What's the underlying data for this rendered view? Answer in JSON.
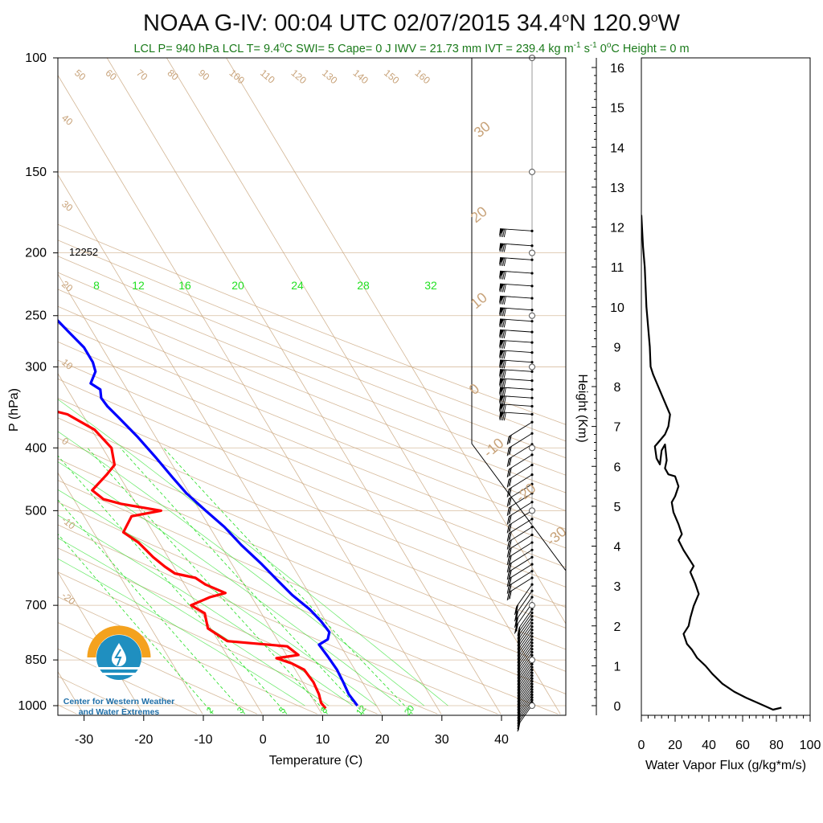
{
  "title": "NOAA G-IV: 00:04 UTC 02/07/2015  34.4",
  "title_lat_sup": "o",
  "title_mid": "N 120.9",
  "title_lon_sup": "o",
  "title_end": "W",
  "subtitle": {
    "part1": "LCL P= 940 hPa  LCL T= 9.4",
    "deg1": "o",
    "part2": "C  SWI= 5  Cape= 0 J  IWV = 21.73 mm  IVT = 239.4 kg m",
    "sup1": "-1",
    "part3": " s",
    "sup2": "-1",
    "part4": "  0",
    "deg2": "o",
    "part5": "C Height = 0 m"
  },
  "height_annotation": "12252",
  "logo": {
    "line1": "Center for Western Weather",
    "line2": "and Water Extremes"
  },
  "colors": {
    "temperature": "#ff0000",
    "dewpoint": "#0000ff",
    "isotherm": "#c8a37a",
    "mixing_ratio": "#22e022",
    "flux": "#000000",
    "logo_orange": "#f4a21e",
    "logo_blue": "#1f8fc0"
  },
  "chart_data": [
    {
      "type": "line",
      "subtype": "skew-t log-p sounding",
      "xlabel": "Temperature (C)",
      "ylabel": "P (hPa)",
      "x_ticks": [
        -30,
        -20,
        -10,
        0,
        10,
        20,
        30,
        40
      ],
      "y_ticks": [
        100,
        150,
        200,
        250,
        300,
        400,
        500,
        700,
        850,
        1000
      ],
      "ylim": [
        1030,
        100
      ],
      "y_scale": "log",
      "dry_adiabat_labels_top": [
        50,
        60,
        70,
        80,
        90,
        100,
        110,
        120,
        130,
        140,
        150,
        160
      ],
      "isotherm_labels_left": [
        40,
        30,
        20,
        10,
        0,
        -10,
        -20
      ],
      "isotherm_labels_right": [
        30,
        20,
        10,
        0,
        -10,
        -20,
        -30
      ],
      "mixing_ratio_labels_upper": [
        8,
        12,
        16,
        20,
        24,
        28,
        32
      ],
      "mixing_ratio_labels_lower": [
        2,
        3,
        5,
        8,
        12,
        20
      ],
      "series": [
        {
          "name": "temperature",
          "points": [
            [
              -15.8,
              185
            ],
            [
              -15.2,
              195
            ],
            [
              -14.2,
              205
            ],
            [
              -14.0,
              220
            ],
            [
              -13.8,
              235
            ],
            [
              -13.6,
              250
            ],
            [
              -13.0,
              260
            ],
            [
              -12.3,
              275
            ],
            [
              -12.0,
              290
            ],
            [
              -12.0,
              305
            ],
            [
              -13.8,
              318
            ],
            [
              -12.0,
              325
            ],
            [
              -10.5,
              335
            ],
            [
              -7.0,
              345
            ],
            [
              -2.5,
              355
            ],
            [
              0.5,
              375
            ],
            [
              1.5,
              400
            ],
            [
              0.3,
              425
            ],
            [
              -2.0,
              440
            ],
            [
              -6.0,
              465
            ],
            [
              -5.0,
              480
            ],
            [
              -2.5,
              488
            ],
            [
              3.5,
              500
            ],
            [
              -2.0,
              510
            ],
            [
              -5.0,
              540
            ],
            [
              -3.5,
              560
            ],
            [
              -2.5,
              590
            ],
            [
              -1.5,
              610
            ],
            [
              -0.5,
              625
            ],
            [
              2.5,
              635
            ],
            [
              3.5,
              650
            ],
            [
              6.0,
              670
            ],
            [
              3.0,
              680
            ],
            [
              -1.0,
              700
            ],
            [
              0.5,
              720
            ],
            [
              -0.5,
              760
            ],
            [
              1.5,
              795
            ],
            [
              11.0,
              810
            ],
            [
              12.0,
              835
            ],
            [
              8.0,
              845
            ],
            [
              10.0,
              860
            ],
            [
              11.5,
              880
            ],
            [
              11.8,
              920
            ],
            [
              11.5,
              960
            ],
            [
              11.0,
              990
            ],
            [
              11.2,
              1010
            ]
          ]
        },
        {
          "name": "dew point",
          "points": [
            [
              3.8,
              185
            ],
            [
              4.0,
              200
            ],
            [
              4.5,
              215
            ],
            [
              5.2,
              235
            ],
            [
              5.0,
              250
            ],
            [
              6.0,
              265
            ],
            [
              7.0,
              280
            ],
            [
              7.0,
              295
            ],
            [
              6.5,
              305
            ],
            [
              4.5,
              318
            ],
            [
              5.5,
              325
            ],
            [
              4.8,
              335
            ],
            [
              5.0,
              345
            ],
            [
              5.8,
              360
            ],
            [
              7.0,
              385
            ],
            [
              8.0,
              415
            ],
            [
              8.8,
              445
            ],
            [
              9.5,
              470
            ],
            [
              11.0,
              500
            ],
            [
              12.5,
              530
            ],
            [
              13.5,
              565
            ],
            [
              15.0,
              605
            ],
            [
              16.0,
              640
            ],
            [
              17.0,
              675
            ],
            [
              18.5,
              710
            ],
            [
              19.2,
              740
            ],
            [
              19.5,
              770
            ],
            [
              18.5,
              790
            ],
            [
              16.5,
              805
            ],
            [
              16.8,
              840
            ],
            [
              17.0,
              880
            ],
            [
              16.8,
              920
            ],
            [
              16.5,
              960
            ],
            [
              16.8,
              1000
            ]
          ]
        }
      ]
    },
    {
      "type": "line",
      "subtype": "vertical profile",
      "xlabel": "Water Vapor Flux (g/kg*m/s)",
      "ylabel": "Height (Km)",
      "xlim": [
        0,
        100
      ],
      "ylim": [
        -0.2,
        16.3
      ],
      "x_ticks": [
        0,
        20,
        40,
        60,
        80,
        100
      ],
      "y_ticks": [
        0,
        1,
        2,
        3,
        4,
        5,
        6,
        7,
        8,
        9,
        10,
        11,
        12,
        13,
        14,
        15,
        16
      ],
      "series": [
        {
          "name": "water vapor flux",
          "points": [
            [
              0,
              12.3
            ],
            [
              1,
              11.5
            ],
            [
              2,
              11.0
            ],
            [
              3,
              10.0
            ],
            [
              4,
              9.5
            ],
            [
              5,
              9.0
            ],
            [
              5.5,
              8.5
            ],
            [
              7,
              8.3
            ],
            [
              10,
              8.0
            ],
            [
              13,
              7.7
            ],
            [
              15,
              7.5
            ],
            [
              17,
              7.3
            ],
            [
              16,
              7.0
            ],
            [
              14,
              6.8
            ],
            [
              10,
              6.6
            ],
            [
              8,
              6.5
            ],
            [
              9,
              6.2
            ],
            [
              11,
              6.05
            ],
            [
              12,
              6.4
            ],
            [
              14,
              6.55
            ],
            [
              15,
              6.15
            ],
            [
              14,
              5.95
            ],
            [
              16,
              5.8
            ],
            [
              20,
              5.75
            ],
            [
              22,
              5.5
            ],
            [
              20,
              5.25
            ],
            [
              18,
              5.1
            ],
            [
              19,
              4.85
            ],
            [
              22,
              4.55
            ],
            [
              24,
              4.3
            ],
            [
              22,
              4.15
            ],
            [
              25,
              3.9
            ],
            [
              28,
              3.7
            ],
            [
              31,
              3.5
            ],
            [
              29,
              3.35
            ],
            [
              32,
              3.05
            ],
            [
              34,
              2.8
            ],
            [
              31,
              2.5
            ],
            [
              29,
              2.2
            ],
            [
              28,
              2.0
            ],
            [
              25,
              1.8
            ],
            [
              27,
              1.55
            ],
            [
              30,
              1.4
            ],
            [
              33,
              1.2
            ],
            [
              38,
              1.0
            ],
            [
              42,
              0.8
            ],
            [
              48,
              0.55
            ],
            [
              55,
              0.35
            ],
            [
              62,
              0.2
            ],
            [
              70,
              0.05
            ],
            [
              78,
              -0.1
            ],
            [
              83,
              -0.05
            ]
          ]
        }
      ]
    }
  ]
}
